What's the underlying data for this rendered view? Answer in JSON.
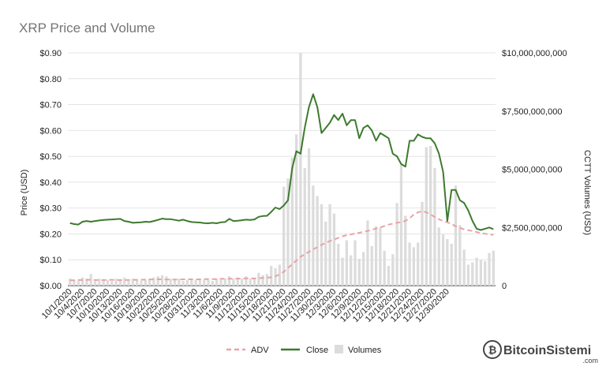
{
  "chart_data": {
    "type": "bar+line",
    "title": "XRP Price and Volume",
    "ylabel_left": "Price (USD)",
    "ylabel_right": "CCTT Volumes (USD)",
    "ylim_left": [
      0,
      0.9
    ],
    "ylim_right": [
      0,
      10000000000
    ],
    "yticks_left": [
      "$0.00",
      "$0.10",
      "$0.20",
      "$0.30",
      "$0.40",
      "$0.50",
      "$0.60",
      "$0.70",
      "$0.80",
      "$0.90"
    ],
    "yticks_right": [
      "0",
      "$2,500,000,000",
      "$5,000,000,000",
      "$7,500,000,000",
      "$10,000,000,000"
    ],
    "x_tick_labels": [
      "10/1/2020",
      "10/4/2020",
      "10/7/2020",
      "10/10/2020",
      "10/13/2020",
      "10/16/2020",
      "10/19/2020",
      "10/22/2020",
      "10/25/2020",
      "10/28/2020",
      "10/31/2020",
      "11/3/2020",
      "11/6/2020",
      "11/9/2020",
      "11/12/2020",
      "11/15/2020",
      "11/18/2020",
      "11/21/2020",
      "11/24/2020",
      "11/27/2020",
      "11/30/2020",
      "12/3/2020",
      "12/6/2020",
      "12/9/2020",
      "12/12/2020",
      "12/15/2020",
      "12/18/2020",
      "12/21/2020",
      "12/24/2020",
      "12/27/2020",
      "12/30/2020"
    ],
    "legend_position": "bottom",
    "grid": true,
    "series": [
      {
        "name": "ADV",
        "kind": "line-dashed",
        "axis": "right",
        "color": "#e8a3a8",
        "values": [
          230000000,
          230000000,
          240000000,
          240000000,
          250000000,
          250000000,
          240000000,
          240000000,
          240000000,
          250000000,
          250000000,
          240000000,
          240000000,
          240000000,
          240000000,
          250000000,
          250000000,
          250000000,
          260000000,
          260000000,
          270000000,
          270000000,
          270000000,
          260000000,
          260000000,
          260000000,
          260000000,
          270000000,
          270000000,
          270000000,
          270000000,
          270000000,
          280000000,
          280000000,
          280000000,
          280000000,
          290000000,
          290000000,
          290000000,
          300000000,
          300000000,
          300000000,
          310000000,
          310000000,
          310000000,
          320000000,
          330000000,
          340000000,
          360000000,
          400000000,
          480000000,
          600000000,
          760000000,
          920000000,
          1080000000,
          1230000000,
          1350000000,
          1450000000,
          1560000000,
          1650000000,
          1750000000,
          1840000000,
          1920000000,
          1980000000,
          2050000000,
          2120000000,
          2170000000,
          2200000000,
          2240000000,
          2270000000,
          2310000000,
          2350000000,
          2400000000,
          2450000000,
          2500000000,
          2560000000,
          2620000000,
          2660000000,
          2700000000,
          2730000000,
          2780000000,
          2900000000,
          3050000000,
          3150000000,
          3200000000,
          3150000000,
          3050000000,
          2950000000,
          2850000000,
          2780000000,
          2720000000,
          2650000000,
          2550000000,
          2480000000,
          2420000000,
          2380000000,
          2350000000,
          2300000000,
          2260000000,
          2230000000,
          2200000000,
          2180000000
        ]
      },
      {
        "name": "Close",
        "kind": "line",
        "axis": "left",
        "color": "#3d7a2e",
        "values": [
          0.242,
          0.238,
          0.236,
          0.247,
          0.25,
          0.247,
          0.25,
          0.252,
          0.254,
          0.255,
          0.256,
          0.257,
          0.258,
          0.25,
          0.247,
          0.243,
          0.244,
          0.245,
          0.247,
          0.246,
          0.25,
          0.254,
          0.259,
          0.257,
          0.257,
          0.254,
          0.251,
          0.255,
          0.25,
          0.246,
          0.245,
          0.244,
          0.242,
          0.241,
          0.243,
          0.241,
          0.245,
          0.246,
          0.258,
          0.25,
          0.251,
          0.253,
          0.255,
          0.254,
          0.256,
          0.266,
          0.269,
          0.27,
          0.285,
          0.302,
          0.296,
          0.31,
          0.33,
          0.454,
          0.52,
          0.51,
          0.61,
          0.69,
          0.74,
          0.69,
          0.59,
          0.61,
          0.63,
          0.66,
          0.64,
          0.665,
          0.62,
          0.64,
          0.64,
          0.57,
          0.61,
          0.62,
          0.6,
          0.56,
          0.59,
          0.58,
          0.57,
          0.51,
          0.5,
          0.47,
          0.46,
          0.56,
          0.56,
          0.585,
          0.575,
          0.57,
          0.57,
          0.55,
          0.51,
          0.44,
          0.25,
          0.37,
          0.37,
          0.33,
          0.32,
          0.29,
          0.25,
          0.22,
          0.215,
          0.22,
          0.225,
          0.218
        ]
      },
      {
        "name": "Volumes",
        "kind": "bar",
        "axis": "right",
        "color": "#dcdcdc",
        "values": [
          300000000,
          250000000,
          200000000,
          350000000,
          300000000,
          500000000,
          200000000,
          300000000,
          250000000,
          250000000,
          200000000,
          300000000,
          250000000,
          350000000,
          200000000,
          300000000,
          250000000,
          200000000,
          250000000,
          300000000,
          350000000,
          400000000,
          450000000,
          400000000,
          300000000,
          250000000,
          300000000,
          200000000,
          250000000,
          300000000,
          250000000,
          300000000,
          250000000,
          250000000,
          200000000,
          300000000,
          250000000,
          300000000,
          400000000,
          300000000,
          350000000,
          300000000,
          400000000,
          300000000,
          300000000,
          550000000,
          450000000,
          500000000,
          850000000,
          750000000,
          900000000,
          4250000000,
          4600000000,
          5500000000,
          6500000000,
          10000000000,
          5050000000,
          5900000000,
          4300000000,
          3850000000,
          3500000000,
          2750000000,
          3500000000,
          3100000000,
          1800000000,
          1200000000,
          1950000000,
          1300000000,
          1950000000,
          1150000000,
          1450000000,
          2800000000,
          1700000000,
          2550000000,
          2500000000,
          1500000000,
          850000000,
          1350000000,
          3550000000,
          5200000000,
          3000000000,
          1850000000,
          1650000000,
          1850000000,
          3600000000,
          5950000000,
          6000000000,
          5050000000,
          2500000000,
          2200000000,
          2000000000,
          1800000000,
          4300000000,
          2600000000,
          1550000000,
          900000000,
          1000000000,
          1200000000,
          1100000000,
          1050000000,
          1400000000,
          1500000000
        ]
      }
    ]
  },
  "legend": {
    "adv_label": "ADV",
    "close_label": "Close",
    "volumes_label": "Volumes"
  },
  "watermark": {
    "brand": "BitcoinSistemi",
    "domain": ".com"
  },
  "colors": {
    "adv": "#e8a3a8",
    "close": "#3d7a2e",
    "volumes": "#dcdcdc",
    "grid": "#e4e4e4",
    "title": "#757575"
  }
}
